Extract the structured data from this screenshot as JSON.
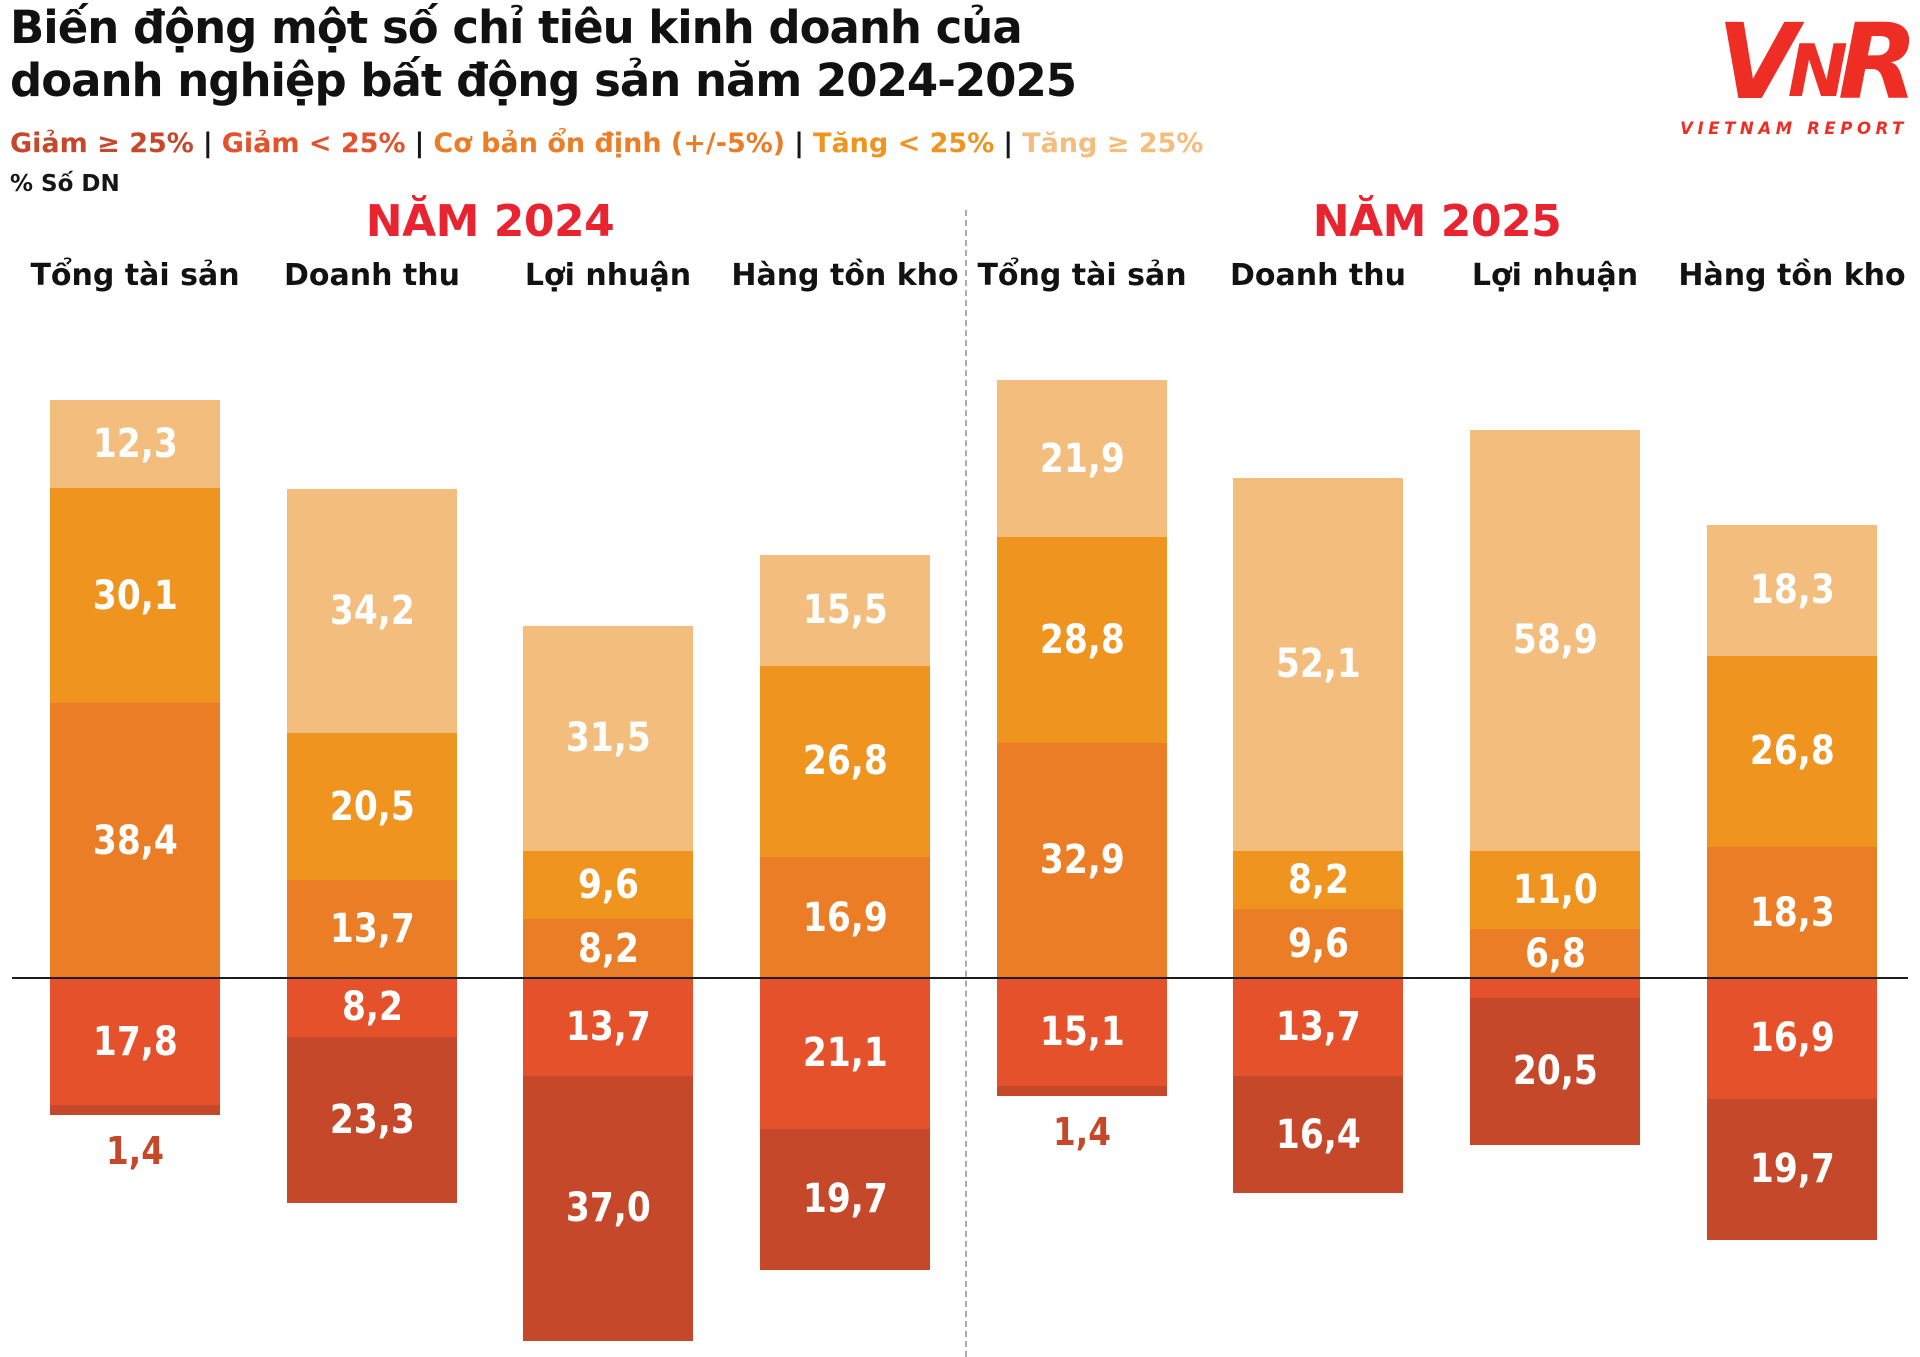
{
  "header": {
    "title_line1": "Biến động một số chỉ tiêu kinh doanh của",
    "title_line2": "doanh nghiệp bất động sản năm 2024-2025",
    "unit_label": "% Số DN",
    "legend_separator": "|"
  },
  "logo": {
    "mark": "VNR",
    "text": "VIETNAM REPORT",
    "color": "#EE2E24"
  },
  "chart_data": {
    "type": "bar",
    "subtype": "diverging-stacked-bar-100pct",
    "unit": "% Số DN",
    "zero_line": true,
    "divider_between_years": true,
    "stack_order_top_to_bottom": [
      "tang_ge_25",
      "tang_lt_25",
      "on_dinh",
      "giam_lt_25",
      "giam_ge_25"
    ],
    "colors": {
      "tang_ge_25": "#F3BD7E",
      "tang_lt_25": "#EF941F",
      "on_dinh": "#EA7D25",
      "giam_lt_25": "#E4512B",
      "giam_ge_25": "#C5482A",
      "year_title": "#E82430",
      "baseline": "#1c1c1c"
    },
    "legend": [
      {
        "key": "giam_ge_25",
        "label": "Giảm ≥ 25%"
      },
      {
        "key": "giam_lt_25",
        "label": "Giảm < 25%"
      },
      {
        "key": "on_dinh",
        "label": "Cơ bản ổn định (+/-5%)"
      },
      {
        "key": "tang_lt_25",
        "label": "Tăng < 25%"
      },
      {
        "key": "tang_ge_25",
        "label": "Tăng ≥ 25%"
      }
    ],
    "groups": [
      {
        "title": "NĂM 2024",
        "categories": [
          {
            "name": "Tổng tài sản",
            "above": [
              {
                "key": "tang_ge_25",
                "value": 12.3,
                "label": "12,3",
                "label_pos": "inside"
              },
              {
                "key": "tang_lt_25",
                "value": 30.1,
                "label": "30,1",
                "label_pos": "inside"
              },
              {
                "key": "on_dinh",
                "value": 38.4,
                "label": "38,4",
                "label_pos": "inside"
              }
            ],
            "below": [
              {
                "key": "giam_lt_25",
                "value": 17.8,
                "label": "17,8",
                "label_pos": "inside"
              },
              {
                "key": "giam_ge_25",
                "value": 1.4,
                "label": "1,4",
                "label_pos": "below"
              }
            ]
          },
          {
            "name": "Doanh thu",
            "above": [
              {
                "key": "tang_ge_25",
                "value": 34.2,
                "label": "34,2",
                "label_pos": "inside"
              },
              {
                "key": "tang_lt_25",
                "value": 20.5,
                "label": "20,5",
                "label_pos": "inside"
              },
              {
                "key": "on_dinh",
                "value": 13.7,
                "label": "13,7",
                "label_pos": "inside"
              }
            ],
            "below": [
              {
                "key": "giam_lt_25",
                "value": 8.2,
                "label": "8,2",
                "label_pos": "inside"
              },
              {
                "key": "giam_ge_25",
                "value": 23.3,
                "label": "23,3",
                "label_pos": "inside"
              }
            ]
          },
          {
            "name": "Lợi nhuận",
            "above": [
              {
                "key": "tang_ge_25",
                "value": 31.5,
                "label": "31,5",
                "label_pos": "inside"
              },
              {
                "key": "tang_lt_25",
                "value": 9.6,
                "label": "9,6",
                "label_pos": "inside"
              },
              {
                "key": "on_dinh",
                "value": 8.2,
                "label": "8,2",
                "label_pos": "inside"
              }
            ],
            "below": [
              {
                "key": "giam_lt_25",
                "value": 13.7,
                "label": "13,7",
                "label_pos": "inside"
              },
              {
                "key": "giam_ge_25",
                "value": 37.0,
                "label": "37,0",
                "label_pos": "inside"
              }
            ]
          },
          {
            "name": "Hàng tồn kho",
            "above": [
              {
                "key": "tang_ge_25",
                "value": 15.5,
                "label": "15,5",
                "label_pos": "inside"
              },
              {
                "key": "tang_lt_25",
                "value": 26.8,
                "label": "26,8",
                "label_pos": "inside"
              },
              {
                "key": "on_dinh",
                "value": 16.9,
                "label": "16,9",
                "label_pos": "inside"
              }
            ],
            "below": [
              {
                "key": "giam_lt_25",
                "value": 21.1,
                "label": "21,1",
                "label_pos": "inside"
              },
              {
                "key": "giam_ge_25",
                "value": 19.7,
                "label": "19,7",
                "label_pos": "inside"
              }
            ]
          }
        ]
      },
      {
        "title": "NĂM 2025",
        "categories": [
          {
            "name": "Tổng tài sản",
            "above": [
              {
                "key": "tang_ge_25",
                "value": 21.9,
                "label": "21,9",
                "label_pos": "inside"
              },
              {
                "key": "tang_lt_25",
                "value": 28.8,
                "label": "28,8",
                "label_pos": "inside"
              },
              {
                "key": "on_dinh",
                "value": 32.9,
                "label": "32,9",
                "label_pos": "inside"
              }
            ],
            "below": [
              {
                "key": "giam_lt_25",
                "value": 15.1,
                "label": "15,1",
                "label_pos": "inside"
              },
              {
                "key": "giam_ge_25",
                "value": 1.4,
                "label": "1,4",
                "label_pos": "below"
              }
            ]
          },
          {
            "name": "Doanh thu",
            "above": [
              {
                "key": "tang_ge_25",
                "value": 52.1,
                "label": "52,1",
                "label_pos": "inside"
              },
              {
                "key": "tang_lt_25",
                "value": 8.2,
                "label": "8,2",
                "label_pos": "inside"
              },
              {
                "key": "on_dinh",
                "value": 9.6,
                "label": "9,6",
                "label_pos": "inside"
              }
            ],
            "below": [
              {
                "key": "giam_lt_25",
                "value": 13.7,
                "label": "13,7",
                "label_pos": "inside"
              },
              {
                "key": "giam_ge_25",
                "value": 16.4,
                "label": "16,4",
                "label_pos": "inside"
              }
            ]
          },
          {
            "name": "Lợi nhuận",
            "above": [
              {
                "key": "tang_ge_25",
                "value": 58.9,
                "label": "58,9",
                "label_pos": "inside"
              },
              {
                "key": "tang_lt_25",
                "value": 11.0,
                "label": "11,0",
                "label_pos": "inside"
              },
              {
                "key": "on_dinh",
                "value": 6.8,
                "label": "6,8",
                "label_pos": "inside"
              }
            ],
            "below": [
              {
                "key": "giam_lt_25",
                "value": 2.8,
                "label": "",
                "label_pos": "none"
              },
              {
                "key": "giam_ge_25",
                "value": 20.5,
                "label": "20,5",
                "label_pos": "inside"
              }
            ]
          },
          {
            "name": "Hàng tồn kho",
            "above": [
              {
                "key": "tang_ge_25",
                "value": 18.3,
                "label": "18,3",
                "label_pos": "inside"
              },
              {
                "key": "tang_lt_25",
                "value": 26.8,
                "label": "26,8",
                "label_pos": "inside"
              },
              {
                "key": "on_dinh",
                "value": 18.3,
                "label": "18,3",
                "label_pos": "inside"
              }
            ],
            "below": [
              {
                "key": "giam_lt_25",
                "value": 16.9,
                "label": "16,9",
                "label_pos": "inside"
              },
              {
                "key": "giam_ge_25",
                "value": 19.7,
                "label": "19,7",
                "label_pos": "inside"
              }
            ]
          }
        ]
      }
    ]
  }
}
